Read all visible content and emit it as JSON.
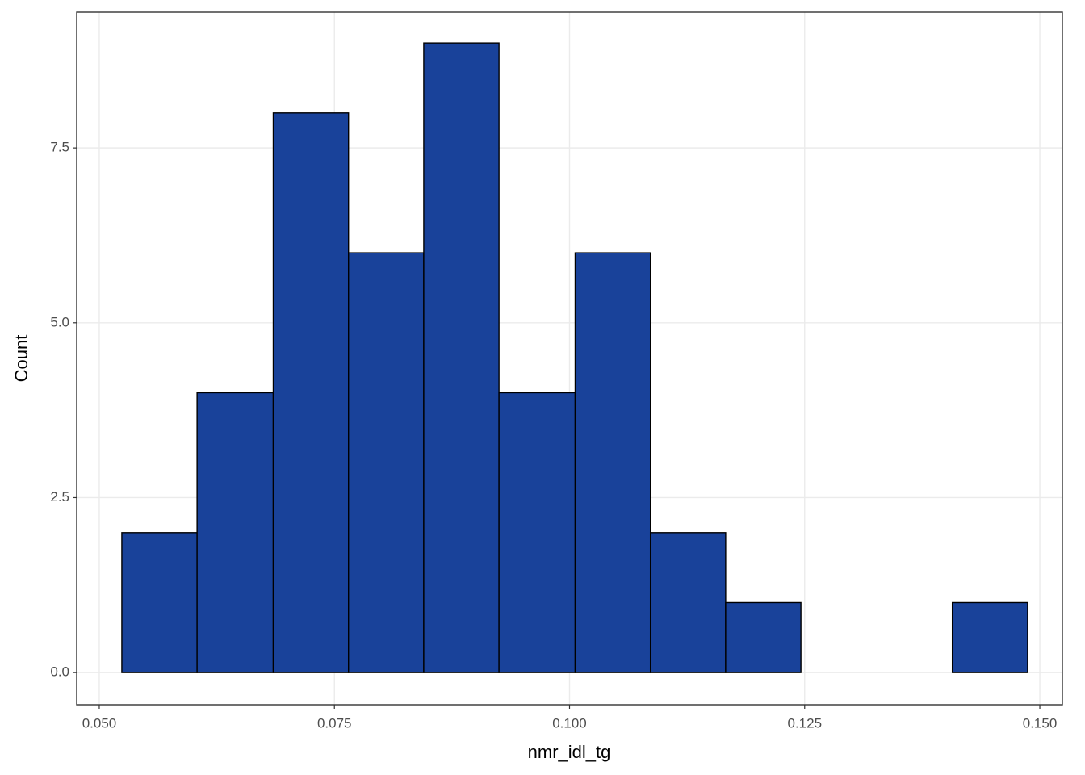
{
  "chart_data": {
    "type": "histogram",
    "x_label": "nmr_idl_tg",
    "y_label": "Count",
    "bins": [
      0.0524,
      0.0604,
      0.0685,
      0.0765,
      0.0845,
      0.0925,
      0.1006,
      0.1086,
      0.1166,
      0.1246,
      0.1327,
      0.1407,
      0.1487
    ],
    "counts": [
      2,
      4,
      8,
      6,
      9,
      4,
      6,
      2,
      1,
      0,
      0,
      1
    ],
    "color": "#19429a",
    "edge_color": "#000000",
    "xlim": [
      0.0476,
      0.1524
    ],
    "ylim": [
      -0.46,
      9.44
    ],
    "xticks": [
      {
        "value": 0.05,
        "label": "0.050"
      },
      {
        "value": 0.075,
        "label": "0.075"
      },
      {
        "value": 0.1,
        "label": "0.100"
      },
      {
        "value": 0.125,
        "label": "0.125"
      },
      {
        "value": 0.15,
        "label": "0.150"
      }
    ],
    "yticks": [
      {
        "value": 0,
        "label": "0.0"
      },
      2.5,
      {
        "value": 5,
        "label": "5.0"
      },
      7.5
    ],
    "grid": true
  }
}
